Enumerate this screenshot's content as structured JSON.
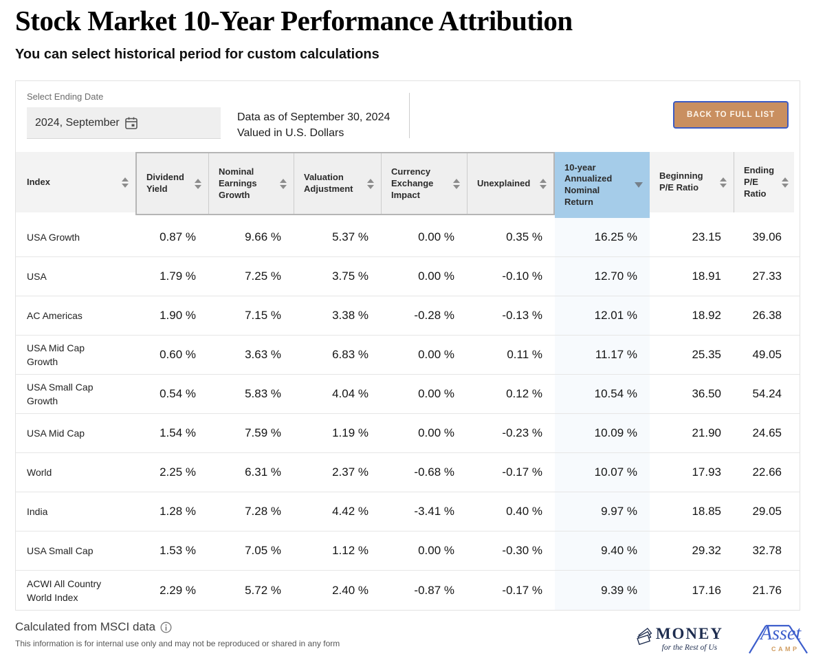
{
  "page": {
    "title": "Stock Market 10-Year Performance Attribution",
    "subtitle": "You can select historical period for custom calculations"
  },
  "controls": {
    "date_label": "Select Ending Date",
    "date_value": "2024, September",
    "data_as_of": "Data as of September 30, 2024",
    "valued_in": "Valued in U.S. Dollars",
    "back_button": "BACK TO FULL LIST"
  },
  "table": {
    "columns": [
      {
        "label": "Index",
        "sort": "both"
      },
      {
        "label": "Dividend Yield",
        "sort": "both"
      },
      {
        "label": "Nominal Earnings Growth",
        "sort": "both"
      },
      {
        "label": "Valuation Adjustment",
        "sort": "both"
      },
      {
        "label": "Currency Exchange Impact",
        "sort": "both"
      },
      {
        "label": "Unexplained",
        "sort": "both"
      },
      {
        "label": "10-year Annualized Nominal Return",
        "sort": "desc"
      },
      {
        "label": "Beginning P/E Ratio",
        "sort": "both"
      },
      {
        "label": "Ending P/E Ratio",
        "sort": "both"
      }
    ],
    "rows": [
      {
        "name": "USA Growth",
        "values": [
          "0.87 %",
          "9.66 %",
          "5.37 %",
          "0.00 %",
          "0.35 %",
          "16.25 %",
          "23.15",
          "39.06"
        ]
      },
      {
        "name": "USA",
        "values": [
          "1.79 %",
          "7.25 %",
          "3.75 %",
          "0.00 %",
          "-0.10 %",
          "12.70 %",
          "18.91",
          "27.33"
        ]
      },
      {
        "name": "AC Americas",
        "values": [
          "1.90 %",
          "7.15 %",
          "3.38 %",
          "-0.28 %",
          "-0.13 %",
          "12.01 %",
          "18.92",
          "26.38"
        ]
      },
      {
        "name": "USA Mid Cap Growth",
        "values": [
          "0.60 %",
          "3.63 %",
          "6.83 %",
          "0.00 %",
          "0.11 %",
          "11.17 %",
          "25.35",
          "49.05"
        ]
      },
      {
        "name": "USA Small Cap Growth",
        "values": [
          "0.54 %",
          "5.83 %",
          "4.04 %",
          "0.00 %",
          "0.12 %",
          "10.54 %",
          "36.50",
          "54.24"
        ]
      },
      {
        "name": "USA Mid Cap",
        "values": [
          "1.54 %",
          "7.59 %",
          "1.19 %",
          "0.00 %",
          "-0.23 %",
          "10.09 %",
          "21.90",
          "24.65"
        ]
      },
      {
        "name": "World",
        "values": [
          "2.25 %",
          "6.31 %",
          "2.37 %",
          "-0.68 %",
          "-0.17 %",
          "10.07 %",
          "17.93",
          "22.66"
        ]
      },
      {
        "name": "India",
        "values": [
          "1.28 %",
          "7.28 %",
          "4.42 %",
          "-3.41 %",
          "0.40 %",
          "9.97 %",
          "18.85",
          "29.05"
        ]
      },
      {
        "name": "USA Small Cap",
        "values": [
          "1.53 %",
          "7.05 %",
          "1.12 %",
          "0.00 %",
          "-0.30 %",
          "9.40 %",
          "29.32",
          "32.78"
        ]
      },
      {
        "name": "ACWI All Country World Index",
        "values": [
          "2.29 %",
          "5.72 %",
          "2.40 %",
          "-0.87 %",
          "-0.17 %",
          "9.39 %",
          "17.16",
          "21.76"
        ]
      }
    ]
  },
  "footer": {
    "source": "Calculated from MSCI data",
    "disclaimer": "This information is for internal use only and may not be reproduced or shared in any form",
    "logo_money": {
      "title": "MONEY",
      "sub": "for the Rest of Us"
    },
    "logo_assetcamp": {
      "title": "Asset",
      "sub": "CAMP"
    }
  },
  "colors": {
    "sorted_column_header": "#a5cce9",
    "sorted_column_body": "#f7fafd",
    "header_gray": "#efefef",
    "button_bg": "#c98f60",
    "button_border": "#3a5ac4",
    "money_navy": "#1e2d4f",
    "assetcamp_blue": "#3d5ecc",
    "assetcamp_orange": "#d09c5f"
  }
}
